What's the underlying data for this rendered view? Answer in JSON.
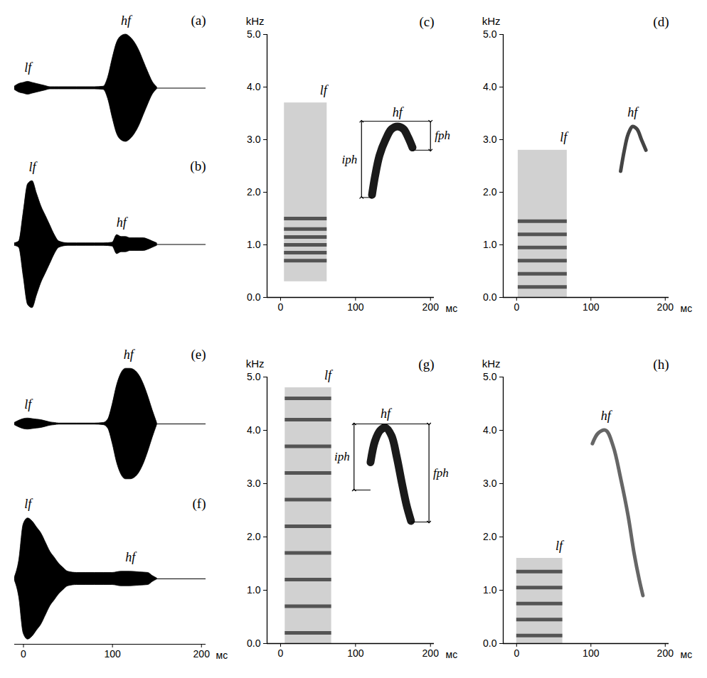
{
  "chart_data": [
    {
      "type": "waveform",
      "panel": "(a)",
      "color": "#000000",
      "tick_labels": false,
      "xlim": [
        -10,
        205
      ],
      "x": [
        -10,
        -5,
        0,
        5,
        10,
        15,
        20,
        25,
        30,
        35,
        40,
        50,
        60,
        70,
        80,
        90,
        95,
        100,
        105,
        110,
        115,
        120,
        125,
        130,
        135,
        140,
        145,
        150
      ],
      "values": [
        0.03,
        0.08,
        0.1,
        0.12,
        0.1,
        0.08,
        0.06,
        0.04,
        0.02,
        0.02,
        0.02,
        0.02,
        0.02,
        0.02,
        0.02,
        0.03,
        0.2,
        0.55,
        0.85,
        0.97,
        1.0,
        0.95,
        0.85,
        0.7,
        0.5,
        0.3,
        0.12,
        0.02
      ],
      "annotations": [
        {
          "text": "lf",
          "x": 5
        },
        {
          "text": "hf",
          "x": 115
        }
      ]
    },
    {
      "type": "waveform",
      "panel": "(b)",
      "color": "#000000",
      "tick_labels": false,
      "xlim": [
        -10,
        205
      ],
      "x": [
        -10,
        -5,
        0,
        5,
        10,
        15,
        20,
        25,
        30,
        35,
        40,
        50,
        60,
        70,
        80,
        90,
        100,
        105,
        110,
        115,
        120,
        125,
        130,
        135,
        140,
        145,
        150
      ],
      "values": [
        0.02,
        0.05,
        0.5,
        0.95,
        1.0,
        0.8,
        0.6,
        0.45,
        0.3,
        0.15,
        0.05,
        0.02,
        0.02,
        0.02,
        0.02,
        0.02,
        0.03,
        0.15,
        0.12,
        0.12,
        0.1,
        0.1,
        0.1,
        0.1,
        0.08,
        0.05,
        0.02
      ],
      "annotations": [
        {
          "text": "lf",
          "x": 10
        },
        {
          "text": "hf",
          "x": 110
        }
      ]
    },
    {
      "type": "spectrogram",
      "panel": "(c)",
      "xlim": [
        -18,
        205
      ],
      "ylim": [
        0,
        5
      ],
      "xticks": [
        0,
        100,
        200
      ],
      "yticks": [
        0,
        1,
        2,
        3,
        4,
        5
      ],
      "x_label": "мс",
      "y_label": "kHz",
      "lf": {
        "label": "lf",
        "start": 5,
        "end": 62,
        "fmin": 0.3,
        "fmax": 3.7,
        "harmonics": [
          0.7,
          0.85,
          1.0,
          1.15,
          1.3,
          1.5
        ]
      },
      "hf": {
        "label": "hf",
        "color": "#1a1a1a",
        "line_style": "thick",
        "x": [
          122,
          126,
          132,
          140,
          148,
          156,
          164,
          170,
          176
        ],
        "y": [
          1.95,
          2.3,
          2.7,
          3.0,
          3.2,
          3.25,
          3.2,
          3.05,
          2.85
        ]
      },
      "measurements": [
        {
          "label": "iph",
          "x": 108,
          "from": 1.9,
          "to": 3.35
        },
        {
          "label": "fph",
          "x": 200,
          "from": 3.35,
          "to": 2.8
        }
      ]
    },
    {
      "type": "spectrogram",
      "panel": "(d)",
      "xlim": [
        -18,
        205
      ],
      "ylim": [
        0,
        5
      ],
      "xticks": [
        0,
        100,
        200
      ],
      "yticks": [
        0,
        1,
        2,
        3,
        4,
        5
      ],
      "x_label": "мс",
      "y_label": "kHz",
      "lf": {
        "label": "lf",
        "start": 2,
        "end": 68,
        "fmin": 0,
        "fmax": 2.8,
        "harmonics": [
          0.2,
          0.45,
          0.7,
          0.95,
          1.2,
          1.45
        ]
      },
      "hf": {
        "label": "hf",
        "color": "#444444",
        "line_style": "thin",
        "x": [
          140,
          145,
          150,
          156,
          162,
          168,
          174
        ],
        "y": [
          2.4,
          2.8,
          3.1,
          3.25,
          3.2,
          3.0,
          2.8
        ]
      }
    },
    {
      "type": "waveform",
      "panel": "(e)",
      "color": "#000000",
      "tick_labels": false,
      "xlim": [
        -10,
        205
      ],
      "x": [
        -10,
        -5,
        0,
        5,
        10,
        15,
        20,
        25,
        30,
        35,
        40,
        50,
        60,
        70,
        80,
        90,
        95,
        100,
        105,
        110,
        115,
        120,
        125,
        130,
        135,
        140,
        145,
        150
      ],
      "values": [
        0.02,
        0.06,
        0.09,
        0.1,
        0.09,
        0.08,
        0.07,
        0.05,
        0.03,
        0.02,
        0.01,
        0.01,
        0.01,
        0.01,
        0.01,
        0.02,
        0.08,
        0.35,
        0.7,
        0.92,
        1.0,
        1.0,
        0.97,
        0.88,
        0.72,
        0.5,
        0.25,
        0.02
      ],
      "annotations": [
        {
          "text": "lf",
          "x": 5
        },
        {
          "text": "hf",
          "x": 118
        }
      ]
    },
    {
      "type": "waveform",
      "panel": "(f)",
      "color": "#000000",
      "tick_labels": "x",
      "xlim": [
        -10,
        205
      ],
      "xticks": [
        0,
        100,
        200
      ],
      "x_label": "мс",
      "x": [
        -10,
        -5,
        0,
        5,
        10,
        15,
        20,
        25,
        30,
        35,
        40,
        45,
        50,
        60,
        70,
        80,
        90,
        100,
        110,
        120,
        130,
        140,
        145,
        150
      ],
      "values": [
        0.02,
        0.3,
        0.9,
        1.0,
        0.95,
        0.85,
        0.75,
        0.6,
        0.45,
        0.35,
        0.25,
        0.18,
        0.12,
        0.1,
        0.1,
        0.1,
        0.1,
        0.1,
        0.12,
        0.12,
        0.11,
        0.1,
        0.05,
        0.01
      ],
      "annotations": [
        {
          "text": "lf",
          "x": 5
        },
        {
          "text": "hf",
          "x": 120
        }
      ]
    },
    {
      "type": "spectrogram",
      "panel": "(g)",
      "xlim": [
        -18,
        205
      ],
      "ylim": [
        0,
        5
      ],
      "xticks": [
        0,
        100,
        200
      ],
      "yticks": [
        0,
        1,
        2,
        3,
        4,
        5
      ],
      "x_label": "мс",
      "y_label": "kHz",
      "lf": {
        "label": "lf",
        "start": 6,
        "end": 68,
        "fmin": 0,
        "fmax": 4.8,
        "harmonics": [
          0.2,
          0.7,
          1.2,
          1.7,
          2.2,
          2.7,
          3.2,
          3.7,
          4.2,
          4.6
        ]
      },
      "hf": {
        "label": "hf",
        "color": "#1a1a1a",
        "line_style": "thick",
        "x": [
          120,
          126,
          133,
          140,
          148,
          155,
          162,
          168,
          174
        ],
        "y": [
          3.4,
          3.8,
          4.0,
          4.05,
          3.9,
          3.5,
          3.0,
          2.6,
          2.3
        ]
      },
      "measurements": [
        {
          "label": "iph",
          "x": 98,
          "from": 2.88,
          "to": 4.12
        },
        {
          "label": "fph",
          "x": 198,
          "from": 4.12,
          "to": 2.28
        }
      ]
    },
    {
      "type": "spectrogram",
      "panel": "(h)",
      "xlim": [
        -18,
        205
      ],
      "ylim": [
        0,
        5
      ],
      "xticks": [
        0,
        100,
        200
      ],
      "yticks": [
        0,
        1,
        2,
        3,
        4,
        5
      ],
      "x_label": "мс",
      "y_label": "kHz",
      "lf": {
        "label": "lf",
        "start": 0,
        "end": 62,
        "fmin": 0,
        "fmax": 1.6,
        "harmonics": [
          0.15,
          0.45,
          0.75,
          1.05,
          1.35
        ]
      },
      "hf": {
        "label": "hf",
        "color": "#666666",
        "line_style": "thin",
        "x": [
          102,
          110,
          120,
          130,
          140,
          150,
          158,
          165,
          170
        ],
        "y": [
          3.75,
          3.95,
          4.0,
          3.7,
          3.1,
          2.4,
          1.7,
          1.2,
          0.9
        ]
      }
    }
  ]
}
